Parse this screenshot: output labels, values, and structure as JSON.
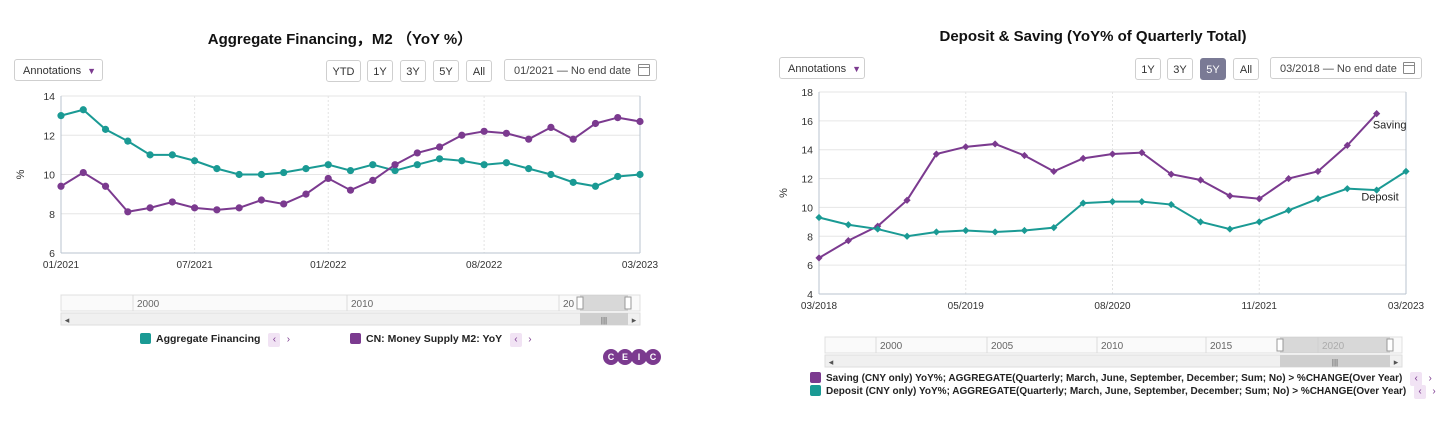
{
  "left_panel": {
    "title": "Aggregate Financing，M2  （YoY %）",
    "annotations_label": "Annotations",
    "range_buttons": [
      "YTD",
      "1Y",
      "3Y",
      "5Y",
      "All"
    ],
    "active_range": null,
    "date_range": "01/2021  —  No end date",
    "navigator_labels": [
      "2000",
      "2010",
      "20"
    ],
    "legend": [
      {
        "label": "Aggregate Financing",
        "color": "#1a9a94"
      },
      {
        "label": "CN: Money Supply M2: YoY",
        "color": "#7b3a8f"
      }
    ],
    "logo": [
      "C",
      "E",
      "I",
      "C"
    ]
  },
  "right_panel": {
    "title": "Deposit & Saving (YoY% of Quarterly Total)",
    "annotations_label": "Annotations",
    "range_buttons": [
      "1Y",
      "3Y",
      "5Y",
      "All"
    ],
    "active_range": "5Y",
    "date_range": "03/2018  —  No end date",
    "navigator_labels": [
      "2000",
      "2005",
      "2010",
      "2015",
      "2020"
    ],
    "legend": [
      {
        "label": "Saving (CNY only) YoY%; AGGREGATE(Quarterly; March, June, September, December; Sum; No) > %CHANGE(Over Year)",
        "color": "#7b3a8f"
      },
      {
        "label": "Deposit (CNY only) YoY%; AGGREGATE(Quarterly; March, June, September, December; Sum; No) > %CHANGE(Over Year)",
        "color": "#1a9a94"
      }
    ]
  },
  "chart_data": [
    {
      "type": "line",
      "title": "Aggregate Financing，M2  （YoY %）",
      "ylabel": "%",
      "xlabel": "",
      "ylim": [
        6,
        14
      ],
      "yticks": [
        6,
        8,
        10,
        12,
        14
      ],
      "x": [
        "01/2021",
        "02/2021",
        "03/2021",
        "04/2021",
        "05/2021",
        "06/2021",
        "07/2021",
        "08/2021",
        "09/2021",
        "10/2021",
        "11/2021",
        "12/2021",
        "01/2022",
        "02/2022",
        "03/2022",
        "04/2022",
        "05/2022",
        "06/2022",
        "07/2022",
        "08/2022",
        "09/2022",
        "10/2022",
        "11/2022",
        "12/2022",
        "01/2023",
        "02/2023",
        "03/2023"
      ],
      "xtick_labels": [
        "01/2021",
        "07/2021",
        "01/2022",
        "08/2022",
        "03/2023"
      ],
      "xtick_index": [
        0,
        6,
        12,
        19,
        26
      ],
      "grid": true,
      "legend_position": "bottom",
      "series": [
        {
          "name": "Aggregate Financing",
          "color": "#1a9a94",
          "values": [
            13.0,
            13.3,
            12.3,
            11.7,
            11.0,
            11.0,
            10.7,
            10.3,
            10.0,
            10.0,
            10.1,
            10.3,
            10.5,
            10.2,
            10.5,
            10.2,
            10.5,
            10.8,
            10.7,
            10.5,
            10.6,
            10.3,
            10.0,
            9.6,
            9.4,
            9.9,
            10.0
          ]
        },
        {
          "name": "CN: Money Supply M2: YoY",
          "color": "#7b3a8f",
          "values": [
            9.4,
            10.1,
            9.4,
            8.1,
            8.3,
            8.6,
            8.3,
            8.2,
            8.3,
            8.7,
            8.5,
            9.0,
            9.8,
            9.2,
            9.7,
            10.5,
            11.1,
            11.4,
            12.0,
            12.2,
            12.1,
            11.8,
            12.4,
            11.8,
            12.6,
            12.9,
            12.7
          ]
        }
      ]
    },
    {
      "type": "line",
      "title": "Deposit & Saving (YoY% of Quarterly Total)",
      "ylabel": "%",
      "xlabel": "",
      "ylim": [
        4,
        18
      ],
      "yticks": [
        4,
        6,
        8,
        10,
        12,
        14,
        16,
        18
      ],
      "x": [
        "03/2018",
        "06/2018",
        "09/2018",
        "12/2018",
        "03/2019",
        "06/2019",
        "09/2019",
        "12/2019",
        "03/2020",
        "06/2020",
        "09/2020",
        "12/2020",
        "03/2021",
        "06/2021",
        "09/2021",
        "12/2021",
        "03/2022",
        "06/2022",
        "09/2022",
        "12/2022",
        "03/2023"
      ],
      "xtick_labels": [
        "03/2018",
        "05/2019",
        "08/2020",
        "11/2021",
        "03/2023"
      ],
      "xtick_index": [
        0,
        5,
        10,
        15,
        20
      ],
      "grid": true,
      "legend_position": "bottom",
      "series": [
        {
          "name": "Saving",
          "label": "Saving",
          "color": "#7b3a8f",
          "values": [
            6.5,
            7.7,
            8.7,
            10.5,
            13.7,
            14.2,
            14.4,
            13.6,
            12.5,
            13.4,
            13.7,
            13.8,
            12.3,
            11.9,
            10.8,
            10.6,
            12.0,
            12.5,
            14.3,
            16.5,
            null
          ]
        },
        {
          "name": "Deposit",
          "label": "Deposit",
          "color": "#1a9a94",
          "values": [
            9.3,
            8.8,
            8.5,
            8.0,
            8.3,
            8.4,
            8.3,
            8.4,
            8.6,
            10.3,
            10.4,
            10.4,
            10.2,
            9.0,
            8.5,
            9.0,
            9.8,
            10.6,
            11.3,
            11.2,
            12.5
          ]
        }
      ]
    }
  ]
}
